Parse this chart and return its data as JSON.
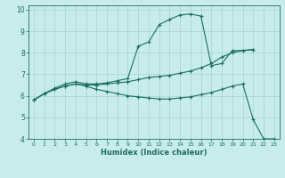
{
  "xlabel": "Humidex (Indice chaleur)",
  "bg_color": "#c8ecea",
  "grid_color": "#a8d8d4",
  "line_color": "#1a6e64",
  "xlim": [
    -0.5,
    23.5
  ],
  "ylim": [
    4,
    10.2
  ],
  "xticks": [
    0,
    1,
    2,
    3,
    4,
    5,
    6,
    7,
    8,
    9,
    10,
    11,
    12,
    13,
    14,
    15,
    16,
    17,
    18,
    19,
    20,
    21,
    22,
    23
  ],
  "yticks": [
    4,
    5,
    6,
    7,
    8,
    9,
    10
  ],
  "line1_x": [
    0,
    1,
    2,
    3,
    4,
    5,
    6,
    7,
    8,
    9,
    10,
    11,
    12,
    13,
    14,
    15,
    16,
    17,
    18,
    19,
    20,
    21
  ],
  "line1_y": [
    5.8,
    6.1,
    6.35,
    6.55,
    6.65,
    6.55,
    6.55,
    6.6,
    6.7,
    6.8,
    8.3,
    8.5,
    9.3,
    9.55,
    9.75,
    9.8,
    9.7,
    7.4,
    7.5,
    8.1,
    8.1,
    8.15
  ],
  "line2_x": [
    0,
    1,
    2,
    3,
    4,
    5,
    6,
    7,
    8,
    9,
    10,
    11,
    12,
    13,
    14,
    15,
    16,
    17,
    18,
    19,
    20,
    21
  ],
  "line2_y": [
    5.8,
    6.1,
    6.3,
    6.45,
    6.55,
    6.5,
    6.5,
    6.55,
    6.6,
    6.65,
    6.75,
    6.85,
    6.9,
    6.95,
    7.05,
    7.15,
    7.3,
    7.5,
    7.8,
    8.0,
    8.1,
    8.15
  ],
  "line3_x": [
    0,
    1,
    2,
    3,
    4,
    5,
    6,
    7,
    8,
    9,
    10,
    11,
    12,
    13,
    14,
    15,
    16,
    17,
    18,
    19,
    20,
    21,
    22,
    23
  ],
  "line3_y": [
    5.8,
    6.1,
    6.3,
    6.45,
    6.55,
    6.45,
    6.3,
    6.2,
    6.1,
    6.0,
    5.95,
    5.9,
    5.85,
    5.85,
    5.9,
    5.95,
    6.05,
    6.15,
    6.3,
    6.45,
    6.55,
    4.9,
    4.0,
    4.0
  ]
}
